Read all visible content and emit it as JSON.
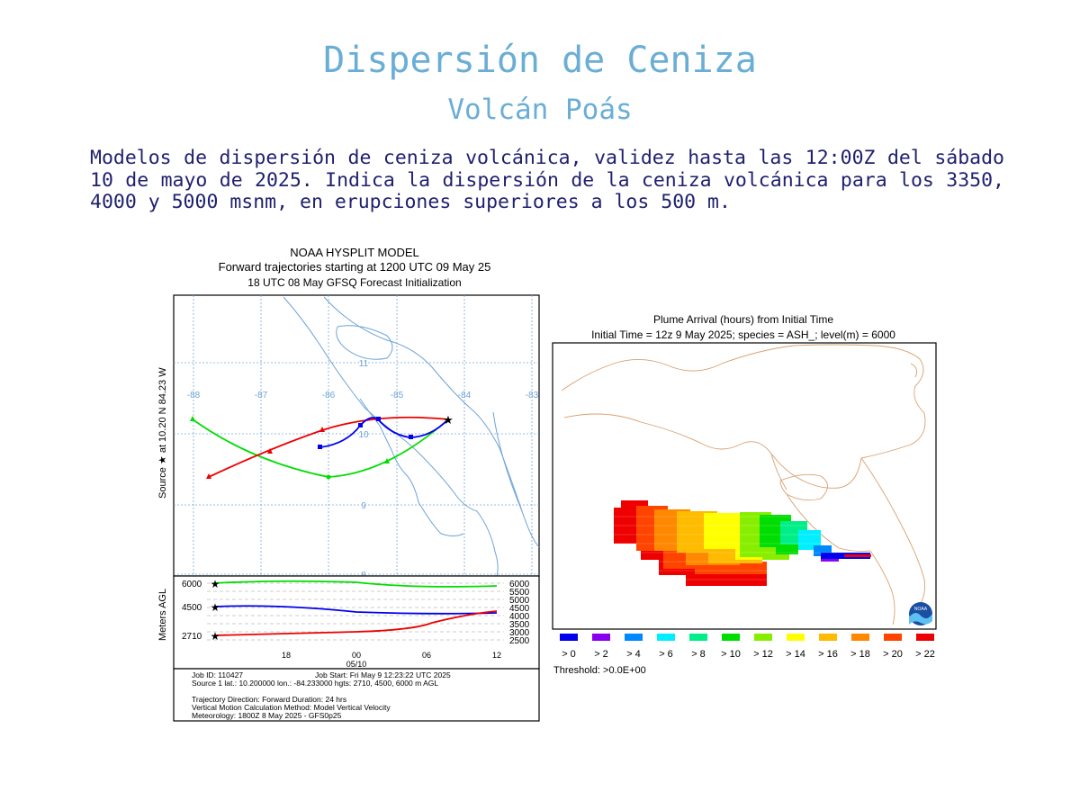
{
  "header": {
    "title": "Dispersión de Ceniza",
    "subtitle": "Volcán Poás"
  },
  "description": "Modelos de dispersión de ceniza volcánica, validez hasta las 12:00Z del sábado 10 de mayo de 2025. Indica la dispersión de la ceniza volcánica para los 3350, 4000 y 5000 msnm, en erupciones superiores a los 500 m.",
  "hysplit": {
    "title_line1": "NOAA HYSPLIT MODEL",
    "title_line2": "Forward trajectories starting at 1200 UTC 09 May 25",
    "title_line3": "18 UTC 08 May    GFSQ  Forecast Initialization",
    "source_label": "Source ★  at   10.20 N   84.23 W",
    "lon_labels": [
      "-88",
      "-87",
      "-86",
      "-85",
      "-84",
      "-83"
    ],
    "lat_labels": [
      "11",
      "10",
      "9",
      "8"
    ],
    "y_axis_label": "Meters AGL",
    "left_heights": [
      "6000",
      "4500",
      "2710"
    ],
    "right_heights": [
      "6000",
      "5500",
      "5000",
      "4500",
      "4000",
      "3500",
      "3000",
      "2500"
    ],
    "time_ticks": [
      "18",
      "00",
      "06",
      "12"
    ],
    "date_label": "05/10",
    "info_job_id": "Job ID: 110427",
    "info_job_start": "Job Start: Fri May  9 12:23:22 UTC 2025",
    "info_source": "Source 1 lat.: 10.200000  lon.: -84.233000  hgts: 2710, 4500, 6000 m AGL",
    "info_direction": "Trajectory Direction: Forward      Duration: 24 hrs",
    "info_vertical": "Vertical Motion Calculation Method:       Model Vertical Velocity",
    "info_meteorology": "Meteorology: 1800Z 8 May 2025 - GFS0p25",
    "colors": {
      "high": "#00dd00",
      "mid": "#0000ee",
      "low": "#ee0000",
      "map": "#6ea3d8",
      "grid": "#7aa6d8"
    }
  },
  "plume": {
    "title_line1": "Plume Arrival (hours) from Initial Time",
    "title_line2": "Initial Time = 12z  9 May 2025;  species = ASH_;  level(m) =  6000",
    "legend_labels": [
      "> 0",
      "> 2",
      "> 4",
      "> 6",
      "> 8",
      "> 10",
      "> 12",
      "> 14",
      "> 16",
      "> 18",
      "> 20",
      "> 22"
    ],
    "legend_colors": [
      "#0000ee",
      "#8800ee",
      "#0088ff",
      "#00eeff",
      "#00ee88",
      "#00dd00",
      "#88ee00",
      "#ffff00",
      "#ffbb00",
      "#ff8800",
      "#ff4400",
      "#ee0000"
    ],
    "threshold": "Threshold: >0.0E+00",
    "noaa_logo_text": "NOAA"
  }
}
